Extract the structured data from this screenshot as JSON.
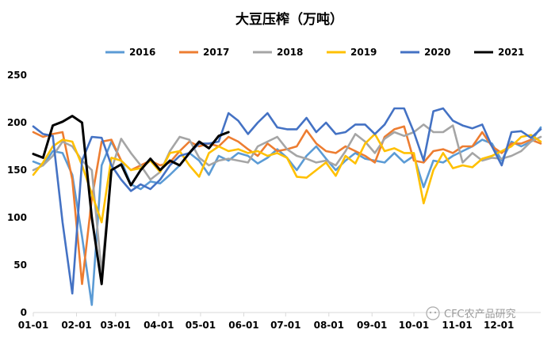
{
  "chart_data": {
    "type": "line",
    "title": "大豆压榨（万吨）",
    "xlabel": "",
    "ylabel": "",
    "ylim": [
      0,
      250
    ],
    "yticks": [
      0,
      50,
      100,
      150,
      200,
      250
    ],
    "xlim": [
      0,
      52
    ],
    "xticks": [
      {
        "label": "01-01",
        "x": 0
      },
      {
        "label": "02-01",
        "x": 4.43
      },
      {
        "label": "03-01",
        "x": 8.43
      },
      {
        "label": "04-01",
        "x": 12.86
      },
      {
        "label": "05-01",
        "x": 17.14
      },
      {
        "label": "06-01",
        "x": 21.57
      },
      {
        "label": "07-01",
        "x": 25.86
      },
      {
        "label": "08-01",
        "x": 30.29
      },
      {
        "label": "09-01",
        "x": 34.71
      },
      {
        "label": "10-01",
        "x": 39.0
      },
      {
        "label": "11-01",
        "x": 43.43
      },
      {
        "label": "12-01",
        "x": 47.71
      }
    ],
    "grid": false,
    "legend_position": "top",
    "series": [
      {
        "name": "2016",
        "color": "#5b9bd5",
        "x": [
          0,
          1,
          2,
          3,
          4,
          5,
          6,
          7,
          8,
          9,
          10,
          11,
          12,
          13,
          14,
          15,
          16,
          17,
          18,
          19,
          20,
          21,
          22,
          23,
          24,
          25,
          26,
          27,
          28,
          29,
          30,
          31,
          32,
          33,
          34,
          35,
          36,
          37,
          38,
          39,
          40,
          41,
          42,
          43,
          44,
          45,
          46,
          47,
          48,
          49,
          50,
          51,
          52
        ],
        "values": [
          159,
          155,
          170,
          168,
          145,
          80,
          8,
          155,
          180,
          160,
          135,
          130,
          138,
          136,
          145,
          155,
          168,
          160,
          145,
          165,
          160,
          168,
          165,
          157,
          163,
          172,
          163,
          150,
          165,
          175,
          162,
          150,
          160,
          168,
          162,
          160,
          158,
          168,
          158,
          165,
          132,
          160,
          158,
          165,
          170,
          175,
          182,
          178,
          160,
          180,
          175,
          180,
          195
        ]
      },
      {
        "name": "2017",
        "color": "#ed7d31",
        "x": [
          0,
          1,
          2,
          3,
          4,
          5,
          6,
          7,
          8,
          9,
          10,
          11,
          12,
          13,
          14,
          15,
          16,
          17,
          18,
          19,
          20,
          21,
          22,
          23,
          24,
          25,
          26,
          27,
          28,
          29,
          30,
          31,
          32,
          33,
          34,
          35,
          36,
          37,
          38,
          39,
          40,
          41,
          42,
          43,
          44,
          45,
          46,
          47,
          48,
          49,
          50,
          51,
          52
        ],
        "values": [
          190,
          185,
          188,
          190,
          140,
          30,
          120,
          180,
          182,
          160,
          150,
          155,
          160,
          155,
          158,
          170,
          180,
          175,
          178,
          175,
          185,
          180,
          172,
          165,
          178,
          170,
          172,
          175,
          192,
          178,
          170,
          168,
          175,
          170,
          165,
          158,
          185,
          193,
          196,
          160,
          158,
          170,
          172,
          168,
          175,
          175,
          190,
          175,
          168,
          178,
          178,
          182,
          178
        ]
      },
      {
        "name": "2018",
        "color": "#a5a5a5",
        "x": [
          0,
          1,
          2,
          3,
          4,
          5,
          6,
          7,
          8,
          9,
          10,
          11,
          12,
          13,
          14,
          15,
          16,
          17,
          18,
          19,
          20,
          21,
          22,
          23,
          24,
          25,
          26,
          27,
          28,
          29,
          30,
          31,
          32,
          33,
          34,
          35,
          36,
          37,
          38,
          39,
          40,
          41,
          42,
          43,
          44,
          45,
          46,
          47,
          48,
          49,
          50,
          51,
          52
        ],
        "values": [
          150,
          155,
          165,
          180,
          175,
          160,
          150,
          42,
          150,
          183,
          168,
          155,
          140,
          148,
          170,
          185,
          182,
          163,
          155,
          160,
          162,
          160,
          158,
          175,
          180,
          185,
          172,
          165,
          162,
          158,
          160,
          155,
          170,
          188,
          180,
          168,
          183,
          190,
          186,
          190,
          198,
          190,
          190,
          197,
          158,
          168,
          160,
          163,
          162,
          165,
          170,
          180,
          185
        ]
      },
      {
        "name": "2019",
        "color": "#ffc000",
        "x": [
          0,
          1,
          2,
          3,
          4,
          5,
          6,
          7,
          8,
          9,
          10,
          11,
          12,
          13,
          14,
          15,
          16,
          17,
          18,
          19,
          20,
          21,
          22,
          23,
          24,
          25,
          26,
          27,
          28,
          29,
          30,
          31,
          32,
          33,
          34,
          35,
          36,
          37,
          38,
          39,
          40,
          41,
          42,
          43,
          44,
          45,
          46,
          47,
          48,
          49,
          50,
          51,
          52
        ],
        "values": [
          145,
          158,
          175,
          182,
          180,
          155,
          125,
          95,
          163,
          160,
          150,
          152,
          160,
          148,
          168,
          170,
          155,
          143,
          168,
          175,
          170,
          172,
          168,
          170,
          165,
          168,
          163,
          143,
          142,
          150,
          158,
          144,
          165,
          157,
          178,
          188,
          170,
          173,
          168,
          168,
          115,
          150,
          168,
          152,
          155,
          153,
          162,
          165,
          170,
          175,
          185,
          187,
          180
        ]
      },
      {
        "name": "2020",
        "color": "#4472c4",
        "x": [
          0,
          1,
          2,
          3,
          4,
          5,
          6,
          7,
          8,
          9,
          10,
          11,
          12,
          13,
          14,
          15,
          16,
          17,
          18,
          19,
          20,
          21,
          22,
          23,
          24,
          25,
          26,
          27,
          28,
          29,
          30,
          31,
          32,
          33,
          34,
          35,
          36,
          37,
          38,
          39,
          40,
          41,
          42,
          43,
          44,
          45,
          46,
          47,
          48,
          49,
          50,
          51,
          52
        ],
        "values": [
          196,
          188,
          186,
          95,
          20,
          160,
          185,
          184,
          155,
          140,
          128,
          135,
          130,
          140,
          155,
          165,
          168,
          178,
          178,
          180,
          210,
          202,
          188,
          200,
          210,
          195,
          193,
          193,
          205,
          190,
          200,
          188,
          190,
          198,
          198,
          188,
          198,
          215,
          215,
          190,
          160,
          212,
          215,
          202,
          197,
          194,
          198,
          175,
          155,
          190,
          191,
          184,
          193
        ]
      },
      {
        "name": "2021",
        "color": "#000000",
        "x": [
          0,
          1,
          2,
          3,
          4,
          5,
          6,
          7,
          8,
          9,
          10,
          11,
          12,
          13,
          14,
          15,
          16,
          17,
          18,
          19,
          20
        ],
        "values": [
          167,
          163,
          197,
          201,
          207,
          200,
          100,
          30,
          150,
          156,
          134,
          150,
          162,
          150,
          160,
          155,
          168,
          180,
          173,
          186,
          190
        ]
      }
    ]
  },
  "watermark": {
    "text": "CFC农产品研究"
  }
}
